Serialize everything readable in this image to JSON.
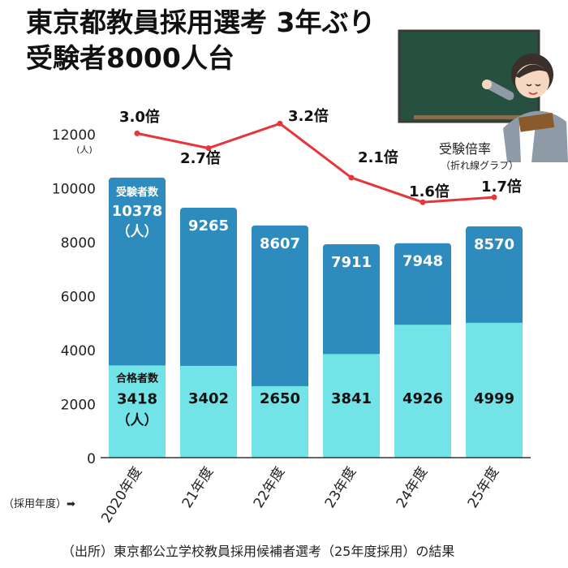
{
  "title": {
    "line1": "東京都教員採用選考 3年ぶり",
    "line2": "受験者8000人台"
  },
  "source": "（出所）東京都公立学校教員採用候補者選考（25年度採用）の結果",
  "chart_data": {
    "type": "bar",
    "categories": [
      "2020年度",
      "21年度",
      "22年度",
      "23年度",
      "24年度",
      "25年度"
    ],
    "xlabel": "（採用年度）➡",
    "yunit": "(人)",
    "ylim": [
      0,
      12000
    ],
    "yticks": [
      0,
      2000,
      4000,
      6000,
      8000,
      10000,
      12000
    ],
    "series": [
      {
        "name": "受験者数",
        "unit": "（人）",
        "values": [
          10378,
          9265,
          8607,
          7911,
          7948,
          8570
        ],
        "color": "#2e8bbd"
      },
      {
        "name": "合格者数",
        "unit": "（人）",
        "values": [
          3418,
          3402,
          2650,
          3841,
          4926,
          4999
        ],
        "color": "#72e4e8"
      }
    ],
    "line_series": {
      "name": "受験倍率",
      "sub": "（折れ線グラフ）",
      "values": [
        3.0,
        2.7,
        3.2,
        2.1,
        1.6,
        1.7
      ],
      "labels": [
        "3.0倍",
        "2.7倍",
        "3.2倍",
        "2.1倍",
        "1.6倍",
        "1.7倍"
      ],
      "color": "#e5363b"
    },
    "grid": false
  }
}
